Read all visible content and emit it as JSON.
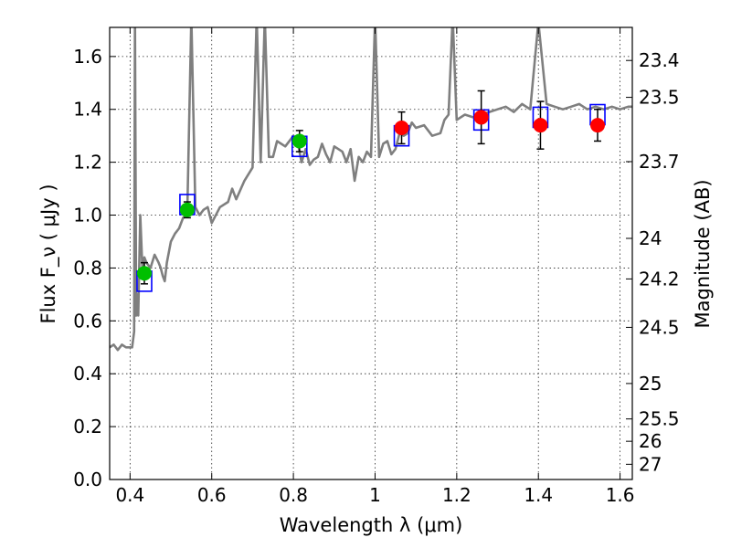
{
  "chart_data": {
    "type": "scatter",
    "title": "",
    "xlabel": "Wavelength  λ (μm)",
    "ylabel": "Flux  F_ν  ( μJy )",
    "y2label": "Magnitude (AB)",
    "xlim": [
      0.35,
      1.63
    ],
    "ylim": [
      0.0,
      1.71
    ],
    "xticks": [
      0.4,
      0.6,
      0.8,
      1.0,
      1.2,
      1.4,
      1.6
    ],
    "xtick_labels": [
      "0.4",
      "0.6",
      "0.8",
      "1",
      "1.2",
      "1.4",
      "1.6"
    ],
    "yticks": [
      0.0,
      0.2,
      0.4,
      0.6,
      0.8,
      1.0,
      1.2,
      1.4,
      1.6
    ],
    "ytick_labels": [
      "0.0",
      "0.2",
      "0.4",
      "0.6",
      "0.8",
      "1.0",
      "1.2",
      "1.4",
      "1.6"
    ],
    "y2ticks": [
      23.4,
      23.5,
      23.7,
      24,
      24.2,
      24.5,
      25,
      25.5,
      26,
      27
    ],
    "y2tick_labels": [
      "23.4",
      "23.5",
      "23.7",
      "24",
      "24.2",
      "24.5",
      "25",
      "25.5",
      "26",
      "27"
    ],
    "grid": true,
    "series": [
      {
        "kind": "line",
        "color": "#7f7f7f",
        "x": [
          0.35,
          0.36,
          0.37,
          0.38,
          0.39,
          0.4,
          0.405,
          0.41,
          0.412,
          0.415,
          0.418,
          0.42,
          0.425,
          0.43,
          0.435,
          0.44,
          0.45,
          0.46,
          0.47,
          0.475,
          0.48,
          0.485,
          0.49,
          0.5,
          0.51,
          0.52,
          0.53,
          0.54,
          0.55,
          0.56,
          0.57,
          0.58,
          0.59,
          0.6,
          0.62,
          0.64,
          0.65,
          0.66,
          0.68,
          0.7,
          0.71,
          0.72,
          0.73,
          0.74,
          0.75,
          0.76,
          0.78,
          0.8,
          0.81,
          0.82,
          0.83,
          0.84,
          0.85,
          0.86,
          0.87,
          0.88,
          0.89,
          0.9,
          0.91,
          0.92,
          0.93,
          0.94,
          0.95,
          0.96,
          0.97,
          0.98,
          0.99,
          1.0,
          1.01,
          1.02,
          1.03,
          1.04,
          1.05,
          1.06,
          1.07,
          1.08,
          1.09,
          1.1,
          1.12,
          1.14,
          1.16,
          1.17,
          1.18,
          1.19,
          1.2,
          1.22,
          1.24,
          1.26,
          1.28,
          1.3,
          1.32,
          1.34,
          1.36,
          1.38,
          1.4,
          1.42,
          1.44,
          1.46,
          1.48,
          1.5,
          1.52,
          1.54,
          1.56,
          1.58,
          1.6,
          1.62,
          1.63
        ],
        "y": [
          0.5,
          0.51,
          0.49,
          0.51,
          0.5,
          0.5,
          0.5,
          0.56,
          1.75,
          0.62,
          0.7,
          0.62,
          1.0,
          0.8,
          0.84,
          0.82,
          0.8,
          0.85,
          0.82,
          0.8,
          0.77,
          0.75,
          0.82,
          0.9,
          0.93,
          0.95,
          0.99,
          1.0,
          1.75,
          1.03,
          1.0,
          1.02,
          1.03,
          0.97,
          1.03,
          1.05,
          1.1,
          1.06,
          1.13,
          1.18,
          1.75,
          1.2,
          1.75,
          1.22,
          1.22,
          1.28,
          1.26,
          1.3,
          1.28,
          1.2,
          1.25,
          1.19,
          1.21,
          1.22,
          1.27,
          1.23,
          1.2,
          1.26,
          1.25,
          1.24,
          1.2,
          1.25,
          1.13,
          1.22,
          1.2,
          1.24,
          1.22,
          1.75,
          1.22,
          1.27,
          1.28,
          1.23,
          1.25,
          1.31,
          1.3,
          1.31,
          1.35,
          1.33,
          1.34,
          1.3,
          1.31,
          1.36,
          1.38,
          1.75,
          1.36,
          1.38,
          1.37,
          1.38,
          1.39,
          1.4,
          1.41,
          1.39,
          1.42,
          1.4,
          1.73,
          1.42,
          1.41,
          1.4,
          1.41,
          1.42,
          1.4,
          1.41,
          1.4,
          1.41,
          1.4,
          1.41,
          1.41
        ]
      },
      {
        "kind": "model-boxes",
        "color": "#0000ff",
        "x": [
          0.435,
          0.54,
          0.815,
          1.065,
          1.26,
          1.405,
          1.545
        ],
        "y": [
          0.75,
          1.04,
          1.26,
          1.3,
          1.36,
          1.37,
          1.38
        ]
      },
      {
        "kind": "points",
        "color": "#00bf00",
        "x": [
          0.435,
          0.54,
          0.815
        ],
        "y": [
          0.78,
          1.02,
          1.28
        ],
        "err": [
          0.04,
          0.03,
          0.04
        ]
      },
      {
        "kind": "points",
        "color": "#ff0000",
        "x": [
          1.065,
          1.26,
          1.405,
          1.545
        ],
        "y": [
          1.33,
          1.37,
          1.34,
          1.34
        ],
        "err": [
          0.06,
          0.1,
          0.09,
          0.06
        ]
      }
    ]
  }
}
